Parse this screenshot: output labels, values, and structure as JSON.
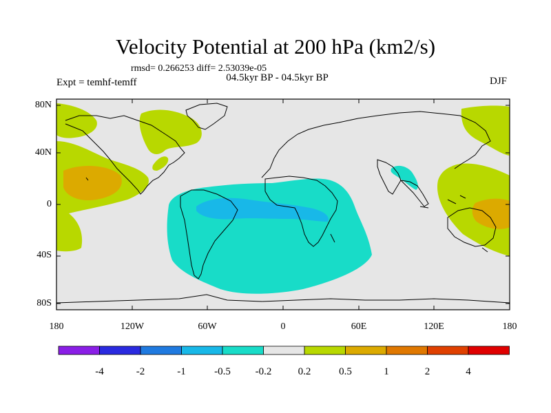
{
  "title": "Velocity Potential at 200 hPa (km2/s)",
  "stats_text": "rmsd= 0.266253 diff= 2.53039e-05",
  "experiment": "Expt = temhf-temff",
  "period": "04.5kyr BP - 04.5kyr BP",
  "season": "DJF",
  "lat_labels": [
    "80N",
    "40N",
    "0",
    "40S",
    "80S"
  ],
  "lon_labels": [
    "180",
    "120W",
    "60W",
    "0",
    "60E",
    "120E",
    "180"
  ],
  "colorbar": {
    "colors": [
      "#8a1ee6",
      "#2a2ae0",
      "#1f7ae0",
      "#18b8e8",
      "#18dcc8",
      "#e6e6e6",
      "#b8d800",
      "#dcaa00",
      "#e07800",
      "#e04000",
      "#e00000"
    ],
    "labels": [
      "-4",
      "-2",
      "-1",
      "-0.5",
      "-0.2",
      "0.2",
      "0.5",
      "1",
      "2",
      "4"
    ]
  },
  "colors": {
    "background": "#e6e6e6",
    "positive_weak": "#b8d800",
    "positive_mid": "#dcaa00",
    "negative_weak": "#18dcc8",
    "negative_mid": "#18b8e8"
  }
}
